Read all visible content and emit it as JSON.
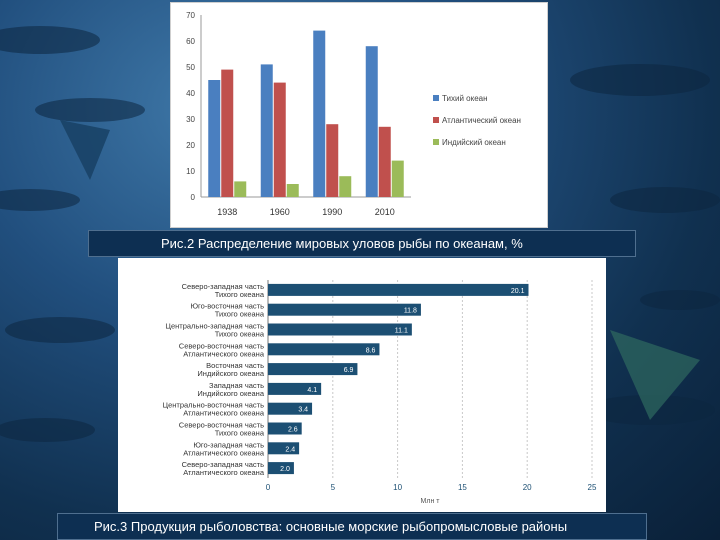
{
  "captions": {
    "fig2": "Рис.2 Распределение мировых уловов рыбы по океанам, %",
    "fig3": "Рис.3 Продукция рыболовства: основные морские рыбопромысловые районы"
  },
  "colors": {
    "pacific": "#4a7fc0",
    "atlantic": "#c0504d",
    "indian": "#9bbb59",
    "hbar": "#1c4f73"
  },
  "chart_data": [
    {
      "type": "bar",
      "categories": [
        "1938",
        "1960",
        "1990",
        "2010"
      ],
      "series": [
        {
          "name": "Тихий океан",
          "values": [
            45,
            51,
            64,
            58
          ]
        },
        {
          "name": "Атлантический океан",
          "values": [
            49,
            44,
            28,
            27
          ]
        },
        {
          "name": "Индийский океан",
          "values": [
            6,
            5,
            8,
            14
          ]
        }
      ],
      "ylim": [
        0,
        70
      ],
      "yticks": [
        0,
        10,
        20,
        30,
        40,
        50,
        60,
        70
      ],
      "legend": "right",
      "grid": false
    },
    {
      "type": "bar",
      "orientation": "horizontal",
      "categories": [
        "Северо-западная часть Тихого океана",
        "Юго-восточная часть Тихого океана",
        "Центрально-западная часть Тихого океана",
        "Северо-восточная часть Атлантического океана",
        "Восточная часть Индийского океана",
        "Западная часть Индийского океана",
        "Центрально-восточная часть Атлантического океана",
        "Северо-восточная часть Тихого океана",
        "Юго-западная часть Атлантического океана",
        "Северо-западная часть Атлантического океана"
      ],
      "values": [
        20.1,
        11.8,
        11.1,
        8.6,
        6.9,
        4.1,
        3.4,
        2.6,
        2.4,
        2.0
      ],
      "value_labels": [
        "20.1",
        "11.8",
        "11.1",
        "8.6",
        "6.9",
        "4.1",
        "3.4",
        "2.6",
        "2.4",
        "2.0"
      ],
      "xlim": [
        0,
        25
      ],
      "xticks": [
        0,
        5,
        10,
        15,
        20,
        25
      ],
      "xlabel": "Млн т",
      "grid": true
    }
  ]
}
